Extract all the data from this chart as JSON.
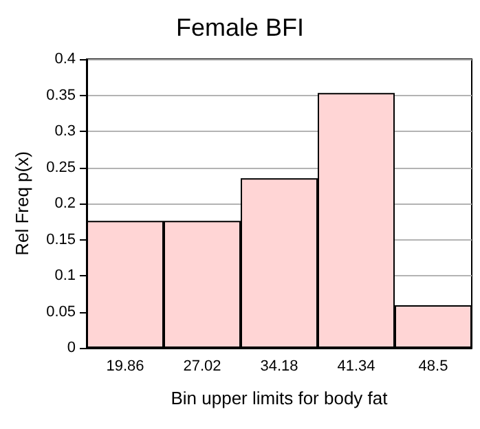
{
  "chart_data": {
    "type": "bar",
    "title": "Female BFI",
    "xlabel": "Bin upper limits for body fat",
    "ylabel": "Rel Freq p(x)",
    "categories": [
      "19.86",
      "27.02",
      "34.18",
      "41.34",
      "48.5"
    ],
    "values": [
      0.176,
      0.176,
      0.235,
      0.353,
      0.059
    ],
    "color": "#ffd5d5",
    "ylim": [
      0,
      0.4
    ],
    "yticks": [
      0,
      0.05,
      0.1,
      0.15,
      0.2,
      0.25,
      0.3,
      0.35,
      0.4
    ],
    "grid": "y"
  }
}
